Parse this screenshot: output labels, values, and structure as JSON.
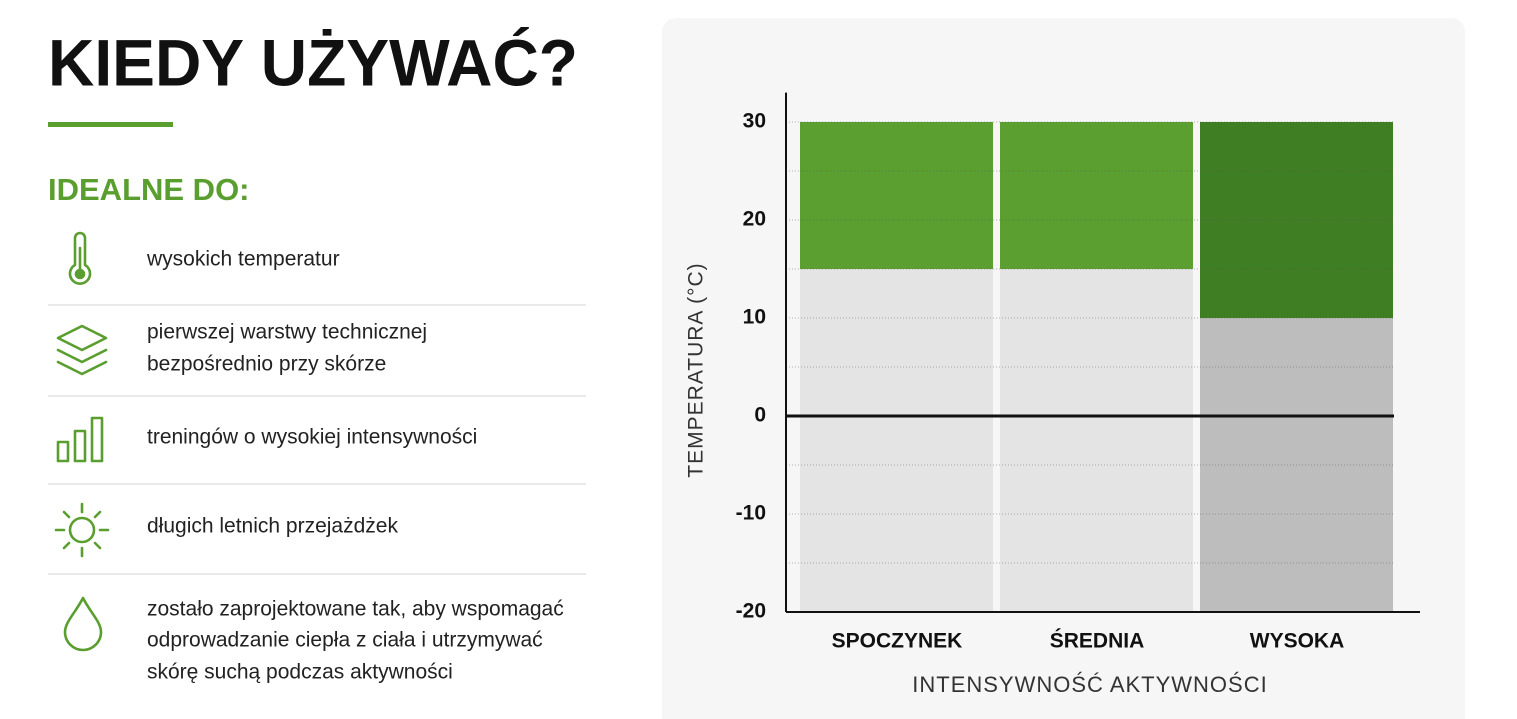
{
  "header": {
    "title": "KIEDY UŻYWAĆ?",
    "subtitle": "IDEALNE DO:"
  },
  "items": [
    {
      "lines": [
        "wysokich temperatur"
      ]
    },
    {
      "lines": [
        "pierwszej warstwy technicznej",
        "bezpośrednio przy skórze"
      ]
    },
    {
      "lines": [
        "treningów o wysokiej intensywności"
      ]
    },
    {
      "lines": [
        "długich letnich przejażdżek"
      ]
    },
    {
      "lines": [
        "zostało zaprojektowane tak, aby wspomagać",
        "odprowadzanie ciepła z ciała i utrzymywać",
        "skórę suchą podczas aktywności"
      ]
    }
  ],
  "chart_data": {
    "type": "range-bar",
    "x_label": "INTENSYWNOŚĆ AKTYWNOŚCI",
    "y_label": "TEMPERATURA (°C)",
    "categories": [
      "SPOCZYNEK",
      "ŚREDNIA",
      "WYSOKA"
    ],
    "low": [
      -20,
      -20,
      -20
    ],
    "mid": [
      15,
      15,
      10
    ],
    "high": [
      30,
      30,
      30
    ],
    "grey_colors": [
      "#e4e4e4",
      "#e4e4e4",
      "#bdbdbd"
    ],
    "green_colors": [
      "#5c9f31",
      "#5c9f31",
      "#3f7e22"
    ],
    "ylim": [
      -20,
      33
    ],
    "yticks": [
      -20,
      -10,
      0,
      10,
      20,
      30
    ],
    "minor_yticks": [
      -15,
      -5,
      5,
      15,
      25
    ],
    "grid": true
  }
}
